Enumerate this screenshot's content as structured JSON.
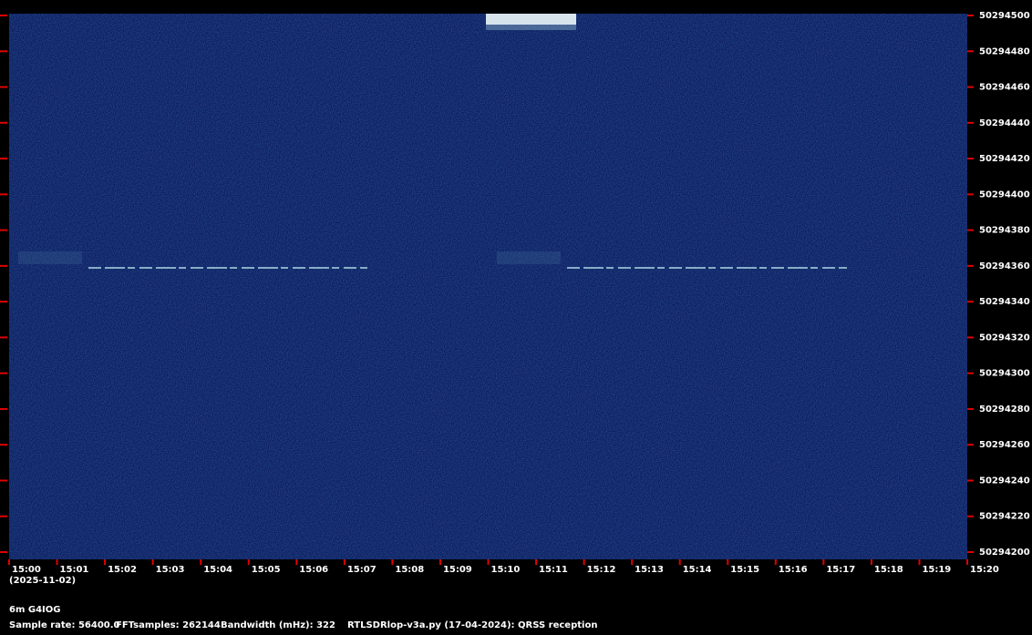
{
  "chart_data": {
    "type": "spectrogram",
    "ylim": [
      50294200,
      50294500
    ],
    "yticks": [
      50294200,
      50294220,
      50294240,
      50294260,
      50294280,
      50294300,
      50294320,
      50294340,
      50294360,
      50294380,
      50294400,
      50294420,
      50294440,
      50294460,
      50294480,
      50294500
    ],
    "categories": [
      "15:00",
      "15:01",
      "15:02",
      "15:03",
      "15:04",
      "15:05",
      "15:06",
      "15:07",
      "15:08",
      "15:09",
      "15:10",
      "15:11",
      "15:12",
      "15:13",
      "15:14",
      "15:15",
      "15:16",
      "15:17",
      "15:18",
      "15:19",
      "15:20"
    ],
    "date_label": "(2025-11-02)",
    "footer": {
      "station": "6m G4IOG",
      "sample_rate": "Sample rate: 56400.0",
      "fft_samples": "FFTsamples: 262144",
      "bandwidth": "Bandwidth (mHz): 322",
      "program": "RTLSDRlop-v3a.py (17-04-2024): QRSS reception"
    }
  }
}
